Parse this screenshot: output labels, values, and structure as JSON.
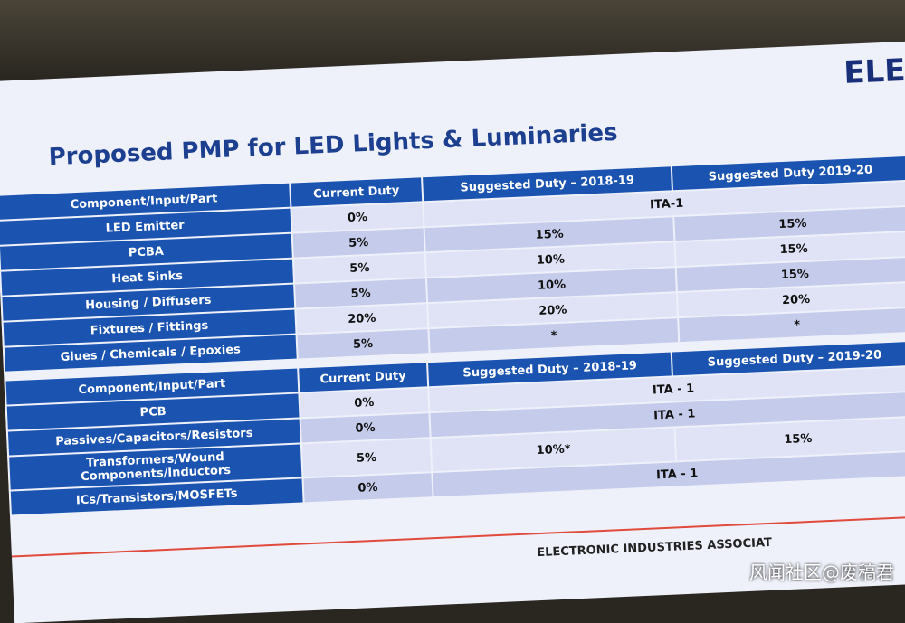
{
  "logo": "ELE",
  "title": "Proposed PMP for LED Lights & Luminaries",
  "tables": [
    {
      "header": [
        "Component/Input/Part",
        "Current Duty",
        "Suggested Duty – 2018-19",
        "Suggested Duty 2019-20"
      ],
      "rows": [
        [
          "LED Emitter",
          "0%",
          "ITA-1"
        ],
        [
          "PCBA",
          "5%",
          "15%",
          "15%"
        ],
        [
          "Heat Sinks",
          "5%",
          "10%",
          "15%"
        ],
        [
          "Housing / Diffusers",
          "5%",
          "10%",
          "15%"
        ],
        [
          "Fixtures / Fittings",
          "20%",
          "20%",
          "20%"
        ],
        [
          "Glues / Chemicals / Epoxies",
          "5%",
          "*",
          "*"
        ]
      ]
    },
    {
      "header": [
        "Component/Input/Part",
        "Current Duty",
        "Suggested Duty – 2018-19",
        "Suggested Duty – 2019-20"
      ],
      "rows": [
        [
          "PCB",
          "0%",
          "ITA - 1"
        ],
        [
          "Passives/Capacitors/Resistors",
          "0%",
          "ITA - 1"
        ],
        [
          "Transformers/Wound Components/Inductors",
          "5%",
          "10%*",
          "15%"
        ],
        [
          "ICs/Transistors/MOSFETs",
          "0%",
          "ITA - 1"
        ]
      ]
    }
  ],
  "footer": "ELECTRONIC INDUSTRIES ASSOCIAT",
  "watermark": "风闻社区@废稿君"
}
